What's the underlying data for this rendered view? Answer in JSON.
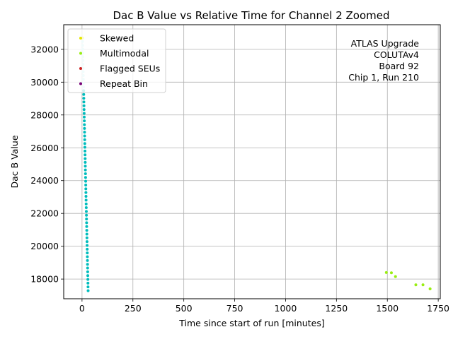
{
  "chart_data": {
    "type": "scatter",
    "title": "Dac B Value vs Relative Time for Channel 2 Zoomed",
    "xlabel": "Time since start of run [minutes]",
    "ylabel": "Dac B Value",
    "xlim": [
      -90,
      1760
    ],
    "ylim": [
      16800,
      33500
    ],
    "xticks": [
      0,
      250,
      500,
      750,
      1000,
      1250,
      1500,
      1750
    ],
    "yticks": [
      18000,
      20000,
      22000,
      24000,
      26000,
      28000,
      30000,
      32000
    ],
    "grid": true,
    "legend_position": "top-left",
    "annotation": [
      "ATLAS Upgrade",
      "COLUTAv4",
      "Board 92",
      "Chip 1, Run 210"
    ],
    "series": [
      {
        "name": "Skewed",
        "color": "#e6e600",
        "points": [
          [
            3,
            32700
          ]
        ]
      },
      {
        "name": "Multimodal",
        "color": "#99ee11",
        "points": [
          [
            1495,
            18400
          ],
          [
            1520,
            18380
          ],
          [
            1540,
            18150
          ],
          [
            1640,
            17650
          ],
          [
            1675,
            17650
          ],
          [
            1710,
            17400
          ]
        ]
      },
      {
        "name": "Flagged SEUs",
        "color": "#cc2222",
        "points": []
      },
      {
        "name": "Repeat Bin",
        "color": "#770077",
        "points": []
      }
    ],
    "main_cluster": {
      "color": "#00bdbd",
      "light_color": "#b8eeee",
      "x_start": 2,
      "x_end": 30,
      "y_start": 32700,
      "y_end": 17400,
      "y_step": 230,
      "light_above": 29500
    }
  }
}
